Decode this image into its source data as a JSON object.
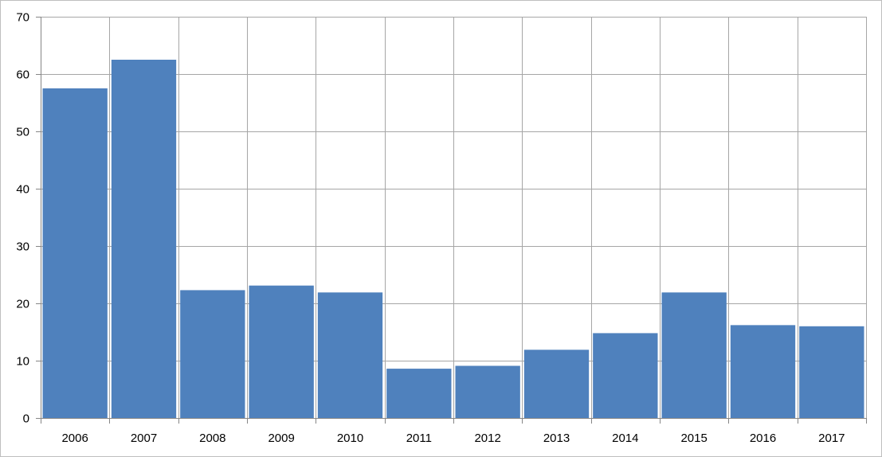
{
  "chart_data": {
    "type": "bar",
    "title": "",
    "xlabel": "",
    "ylabel": "",
    "categories": [
      "2006",
      "2007",
      "2008",
      "2009",
      "2010",
      "2011",
      "2012",
      "2013",
      "2014",
      "2015",
      "2016",
      "2017"
    ],
    "values": [
      57.5,
      62.5,
      22.3,
      23.1,
      21.9,
      8.6,
      9.1,
      11.9,
      14.8,
      21.9,
      16.2,
      16.0
    ],
    "ylim": [
      0,
      70
    ],
    "yticks": [
      0,
      10,
      20,
      30,
      40,
      50,
      60,
      70
    ],
    "grid": true,
    "legend": "none",
    "colors": {
      "bar": "#4f81bd",
      "grid": "#a6a6a6",
      "axis": "#868686",
      "border": "#bfbfbf"
    }
  }
}
